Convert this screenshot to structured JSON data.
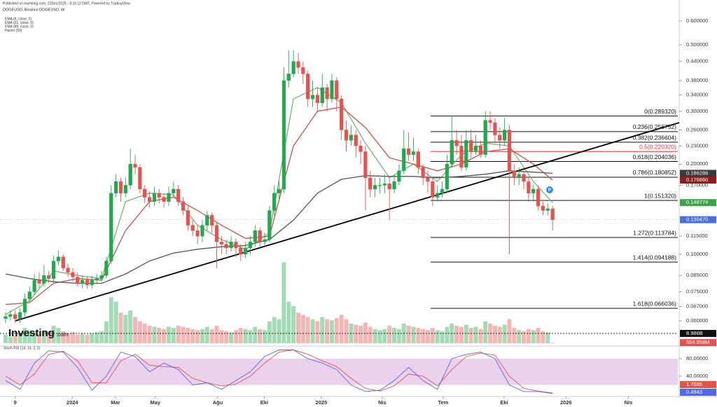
{
  "header": {
    "published": "Published on Investing.com, 23Dec/2025 - 8:16:11 GMT, Powered by TradingView"
  },
  "logo": {
    "brand": "Investing",
    "suffix": ".com"
  },
  "chart_data": {
    "type": "candlestick",
    "title": "DOGEUSD, Binance:DOGEUSD, W",
    "log_scale": true,
    "xlim": [
      -1.17,
      140.1
    ],
    "xticks": [
      {
        "value": 2,
        "label": "9"
      },
      {
        "value": 13.9,
        "label": "2024"
      },
      {
        "value": 22.9,
        "label": "Mar"
      },
      {
        "value": 31.2,
        "label": "May"
      },
      {
        "value": 44.2,
        "label": "Ağu"
      },
      {
        "value": 53.9,
        "label": "Eki"
      },
      {
        "value": 65.8,
        "label": "2025"
      },
      {
        "value": 78.5,
        "label": "Nis"
      },
      {
        "value": 91.2,
        "label": "Tem"
      },
      {
        "value": 103.9,
        "label": "Eki"
      },
      {
        "value": 116.8,
        "label": "2026"
      },
      {
        "value": 129.8,
        "label": "Nis"
      }
    ],
    "ylim": [
      0.0505,
      0.7055
    ],
    "yticks": [
      {
        "value": 0.6,
        "label": "0.600000"
      },
      {
        "value": 0.5,
        "label": "0.500000"
      },
      {
        "value": 0.44,
        "label": "0.440000"
      },
      {
        "value": 0.38,
        "label": "0.380000"
      },
      {
        "value": 0.34,
        "label": "0.340000"
      },
      {
        "value": 0.3,
        "label": "0.300000"
      },
      {
        "value": 0.26,
        "label": "0.260000"
      },
      {
        "value": 0.23,
        "label": "0.230000"
      },
      {
        "value": 0.2,
        "label": "0.200000"
      },
      {
        "value": 0.17,
        "label": "0.170000"
      },
      {
        "value": 0.115,
        "label": "0.115000"
      },
      {
        "value": 0.1,
        "label": "0.100000"
      },
      {
        "value": 0.085,
        "label": "0.085000"
      },
      {
        "value": 0.075,
        "label": "0.075000"
      },
      {
        "value": 0.067,
        "label": "0.067000"
      },
      {
        "value": 0.06,
        "label": "0.060000"
      }
    ],
    "up_color": "#22a94f",
    "down_color": "#e5524f",
    "open": [
      0.061,
      0.062,
      0.063,
      0.061,
      0.064,
      0.071,
      0.075,
      0.082,
      0.08,
      0.085,
      0.083,
      0.095,
      0.098,
      0.09,
      0.087,
      0.084,
      0.08,
      0.082,
      0.079,
      0.082,
      0.083,
      0.085,
      0.095,
      0.16,
      0.175,
      0.16,
      0.17,
      0.2,
      0.195,
      0.165,
      0.155,
      0.15,
      0.16,
      0.155,
      0.15,
      0.16,
      0.165,
      0.15,
      0.14,
      0.125,
      0.12,
      0.115,
      0.125,
      0.135,
      0.125,
      0.11,
      0.108,
      0.105,
      0.11,
      0.105,
      0.1,
      0.105,
      0.11,
      0.12,
      0.11,
      0.112,
      0.14,
      0.16,
      0.165,
      0.38,
      0.4,
      0.44,
      0.42,
      0.4,
      0.33,
      0.34,
      0.32,
      0.36,
      0.33,
      0.38,
      0.33,
      0.26,
      0.24,
      0.25,
      0.23,
      0.22,
      0.18,
      0.165,
      0.17,
      0.17,
      0.172,
      0.165,
      0.175,
      0.19,
      0.225,
      0.215,
      0.22,
      0.195,
      0.18,
      0.175,
      0.155,
      0.16,
      0.165,
      0.2,
      0.24,
      0.23,
      0.195,
      0.24,
      0.22,
      0.23,
      0.215,
      0.28,
      0.275,
      0.25,
      0.24,
      0.26,
      0.19,
      0.18,
      0.185,
      0.175,
      0.16,
      0.165,
      0.145,
      0.14,
      0.142
    ],
    "high": [
      0.064,
      0.065,
      0.065,
      0.066,
      0.074,
      0.078,
      0.086,
      0.087,
      0.092,
      0.088,
      0.099,
      0.103,
      0.1,
      0.093,
      0.09,
      0.087,
      0.085,
      0.084,
      0.085,
      0.086,
      0.088,
      0.098,
      0.17,
      0.185,
      0.18,
      0.18,
      0.225,
      0.215,
      0.2,
      0.17,
      0.162,
      0.168,
      0.165,
      0.16,
      0.168,
      0.175,
      0.17,
      0.155,
      0.145,
      0.13,
      0.125,
      0.13,
      0.14,
      0.138,
      0.128,
      0.115,
      0.112,
      0.115,
      0.113,
      0.108,
      0.11,
      0.115,
      0.125,
      0.123,
      0.118,
      0.145,
      0.17,
      0.175,
      0.42,
      0.48,
      0.48,
      0.47,
      0.44,
      0.41,
      0.38,
      0.36,
      0.4,
      0.37,
      0.4,
      0.39,
      0.34,
      0.28,
      0.27,
      0.26,
      0.24,
      0.23,
      0.19,
      0.18,
      0.18,
      0.185,
      0.18,
      0.185,
      0.2,
      0.26,
      0.255,
      0.245,
      0.225,
      0.2,
      0.19,
      0.18,
      0.17,
      0.175,
      0.215,
      0.29,
      0.26,
      0.25,
      0.26,
      0.26,
      0.25,
      0.24,
      0.3,
      0.3,
      0.285,
      0.265,
      0.285,
      0.27,
      0.2,
      0.195,
      0.19,
      0.18,
      0.17,
      0.17,
      0.15,
      0.148,
      0.145
    ],
    "low": [
      0.059,
      0.06,
      0.059,
      0.059,
      0.062,
      0.069,
      0.073,
      0.077,
      0.078,
      0.08,
      0.081,
      0.092,
      0.088,
      0.084,
      0.081,
      0.078,
      0.077,
      0.077,
      0.077,
      0.08,
      0.081,
      0.083,
      0.093,
      0.155,
      0.15,
      0.155,
      0.165,
      0.185,
      0.16,
      0.148,
      0.143,
      0.145,
      0.148,
      0.143,
      0.145,
      0.155,
      0.145,
      0.135,
      0.12,
      0.115,
      0.108,
      0.11,
      0.12,
      0.118,
      0.09,
      0.1,
      0.1,
      0.102,
      0.098,
      0.095,
      0.097,
      0.1,
      0.106,
      0.106,
      0.106,
      0.11,
      0.135,
      0.15,
      0.16,
      0.36,
      0.39,
      0.4,
      0.37,
      0.31,
      0.31,
      0.3,
      0.31,
      0.3,
      0.32,
      0.3,
      0.24,
      0.22,
      0.23,
      0.21,
      0.2,
      0.14,
      0.155,
      0.155,
      0.16,
      0.16,
      0.13,
      0.16,
      0.17,
      0.185,
      0.205,
      0.205,
      0.185,
      0.17,
      0.16,
      0.145,
      0.15,
      0.155,
      0.16,
      0.195,
      0.215,
      0.19,
      0.19,
      0.21,
      0.215,
      0.21,
      0.21,
      0.26,
      0.235,
      0.225,
      0.23,
      0.1,
      0.17,
      0.17,
      0.165,
      0.15,
      0.15,
      0.14,
      0.135,
      0.135,
      0.12
    ],
    "close": [
      0.062,
      0.063,
      0.061,
      0.064,
      0.071,
      0.075,
      0.082,
      0.08,
      0.085,
      0.083,
      0.095,
      0.098,
      0.09,
      0.087,
      0.084,
      0.08,
      0.082,
      0.079,
      0.082,
      0.083,
      0.085,
      0.095,
      0.16,
      0.175,
      0.16,
      0.17,
      0.2,
      0.195,
      0.165,
      0.155,
      0.15,
      0.16,
      0.155,
      0.15,
      0.16,
      0.165,
      0.15,
      0.14,
      0.125,
      0.12,
      0.115,
      0.125,
      0.135,
      0.125,
      0.11,
      0.108,
      0.105,
      0.11,
      0.105,
      0.1,
      0.105,
      0.11,
      0.12,
      0.11,
      0.112,
      0.14,
      0.16,
      0.165,
      0.38,
      0.4,
      0.44,
      0.42,
      0.4,
      0.33,
      0.34,
      0.32,
      0.36,
      0.33,
      0.38,
      0.33,
      0.26,
      0.24,
      0.25,
      0.23,
      0.22,
      0.18,
      0.165,
      0.17,
      0.17,
      0.172,
      0.165,
      0.175,
      0.19,
      0.225,
      0.215,
      0.22,
      0.195,
      0.18,
      0.175,
      0.155,
      0.16,
      0.165,
      0.2,
      0.24,
      0.23,
      0.195,
      0.24,
      0.22,
      0.23,
      0.215,
      0.28,
      0.275,
      0.25,
      0.24,
      0.26,
      0.19,
      0.18,
      0.185,
      0.175,
      0.16,
      0.165,
      0.145,
      0.14,
      0.142,
      0.13047
    ],
    "series": [
      {
        "name": "EMA (8, close, 0)",
        "color": "#7bb276",
        "x": [
          0,
          5,
          10,
          15,
          20,
          25,
          30,
          35,
          40,
          45,
          50,
          55,
          60,
          65,
          70,
          75,
          80,
          85,
          90,
          95,
          100,
          105,
          110,
          114
        ],
        "values": [
          0.063,
          0.07,
          0.088,
          0.085,
          0.083,
          0.15,
          0.16,
          0.158,
          0.125,
          0.112,
          0.104,
          0.118,
          0.33,
          0.36,
          0.32,
          0.235,
          0.18,
          0.2,
          0.175,
          0.215,
          0.235,
          0.23,
          0.175,
          0.148774
        ]
      },
      {
        "name": "EMA (21, close, 0)",
        "color": "#c9514e",
        "x": [
          0,
          5,
          10,
          15,
          20,
          25,
          30,
          35,
          40,
          45,
          50,
          55,
          60,
          65,
          70,
          75,
          80,
          85,
          90,
          95,
          100,
          105,
          110,
          114
        ],
        "values": [
          0.068,
          0.069,
          0.08,
          0.083,
          0.082,
          0.12,
          0.15,
          0.155,
          0.14,
          0.125,
          0.113,
          0.115,
          0.23,
          0.3,
          0.31,
          0.265,
          0.21,
          0.2,
          0.19,
          0.2,
          0.22,
          0.225,
          0.2,
          0.17686
        ]
      },
      {
        "name": "EMA (89, close, 0)",
        "color": "#555555",
        "x": [
          0,
          5,
          10,
          15,
          20,
          25,
          30,
          35,
          40,
          45,
          50,
          55,
          60,
          65,
          70,
          75,
          80,
          85,
          90,
          95,
          100,
          105,
          110,
          114
        ],
        "values": [
          0.086,
          0.083,
          0.081,
          0.08,
          0.08,
          0.086,
          0.095,
          0.101,
          0.104,
          0.106,
          0.107,
          0.112,
          0.13,
          0.16,
          0.178,
          0.183,
          0.182,
          0.182,
          0.18,
          0.182,
          0.185,
          0.19,
          0.188,
          0.186286
        ]
      }
    ],
    "volume": {
      "name": "Hacim (50)",
      "ylim": [
        0,
        80
      ],
      "values": [
        8,
        6,
        7,
        9,
        14,
        12,
        10,
        9,
        12,
        11,
        16,
        14,
        11,
        9,
        10,
        8,
        9,
        8,
        9,
        10,
        11,
        20,
        42,
        38,
        28,
        26,
        30,
        24,
        20,
        18,
        16,
        15,
        14,
        13,
        15,
        14,
        16,
        15,
        14,
        13,
        12,
        13,
        15,
        13,
        16,
        12,
        11,
        10,
        12,
        14,
        13,
        12,
        15,
        13,
        12,
        20,
        24,
        22,
        74,
        38,
        34,
        28,
        26,
        24,
        22,
        20,
        24,
        22,
        21,
        23,
        26,
        22,
        18,
        17,
        16,
        19,
        15,
        13,
        12,
        13,
        16,
        14,
        13,
        18,
        16,
        15,
        14,
        13,
        12,
        14,
        12,
        11,
        15,
        18,
        16,
        15,
        17,
        14,
        15,
        13,
        20,
        18,
        16,
        15,
        17,
        22,
        14,
        12,
        11,
        13,
        12,
        14,
        11,
        10,
        0.554858
      ],
      "labels": [
        {
          "value": 8.986,
          "label": "8.986B",
          "color": "#111111"
        },
        {
          "value": 0.554858,
          "label": "554.858M",
          "color": "#e5524f"
        }
      ]
    },
    "price_labels": [
      {
        "value": 0.186286,
        "label": "0.186286",
        "color": "#3a3a3a"
      },
      {
        "value": 0.17686,
        "label": "0.176860",
        "color": "#8e1c1c"
      },
      {
        "value": 0.148774,
        "label": "0.148774",
        "color": "#3fa34d"
      },
      {
        "value": 0.13047,
        "label": "0.130470",
        "color": "#4a6fd8"
      }
    ],
    "trendline": {
      "x": [
        2,
        140.4
      ],
      "values": [
        0.06,
        0.275
      ],
      "color": "#000000"
    },
    "fib_levels": [
      {
        "label": "0(0.289320)",
        "value": 0.28932,
        "color": "#111111"
      },
      {
        "label": "0.236(0.256752)",
        "value": 0.256752,
        "color": "#111111"
      },
      {
        "label": "0.382(0.236604)",
        "value": 0.236604,
        "color": "#111111"
      },
      {
        "label": "0.5(0.220320)",
        "value": 0.22032,
        "color": "#e03131"
      },
      {
        "label": "0.618(0.204036)",
        "value": 0.204036,
        "color": "#111111"
      },
      {
        "label": "0.786(0.180852)",
        "value": 0.180852,
        "color": "#111111"
      },
      {
        "label": "1(0.151320)",
        "value": 0.15132,
        "color": "#111111"
      },
      {
        "label": "1.272(0.113784)",
        "value": 0.113784,
        "color": "#111111"
      },
      {
        "label": "1.414(0.094188)",
        "value": 0.094188,
        "color": "#111111"
      },
      {
        "label": "1.618(0.066036)",
        "value": 0.066036,
        "color": "#111111"
      }
    ],
    "stoch": {
      "title": "Stoch RSI (14, 14, 3, 3)",
      "ylim": [
        0,
        100
      ],
      "band": [
        20,
        80
      ],
      "yticks": [
        {
          "value": 80,
          "label": "80.00000"
        },
        {
          "value": 40,
          "label": "40.00000"
        }
      ],
      "x": [
        0,
        3,
        6,
        9,
        12,
        15,
        18,
        21,
        24,
        27,
        30,
        33,
        36,
        39,
        42,
        45,
        48,
        51,
        54,
        57,
        60,
        63,
        66,
        69,
        72,
        75,
        78,
        81,
        84,
        87,
        90,
        93,
        96,
        99,
        102,
        105,
        108,
        111,
        114
      ],
      "k": {
        "color": "#5468e0",
        "values": [
          30,
          10,
          70,
          98,
          95,
          60,
          8,
          40,
          95,
          85,
          50,
          70,
          55,
          20,
          25,
          10,
          30,
          50,
          85,
          100,
          100,
          80,
          70,
          55,
          20,
          5,
          8,
          30,
          60,
          30,
          10,
          80,
          90,
          95,
          80,
          20,
          5,
          5,
          0.4943
        ]
      },
      "d": {
        "color": "#e0564f",
        "values": [
          40,
          20,
          45,
          90,
          97,
          75,
          25,
          25,
          75,
          90,
          65,
          62,
          60,
          35,
          25,
          18,
          22,
          40,
          70,
          95,
          100,
          90,
          75,
          62,
          35,
          12,
          6,
          18,
          45,
          40,
          18,
          55,
          85,
          93,
          88,
          40,
          12,
          6,
          1.7685
        ]
      }
    }
  }
}
